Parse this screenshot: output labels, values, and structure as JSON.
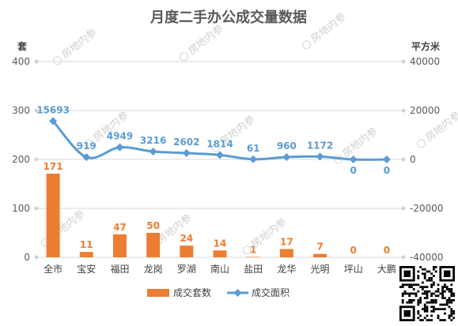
{
  "chart_data": {
    "type": "bar+line",
    "title": "月度二手办公成交量数据",
    "categories": [
      "全市",
      "宝安",
      "福田",
      "龙岗",
      "罗湖",
      "南山",
      "盐田",
      "龙华",
      "光明",
      "坪山",
      "大鹏"
    ],
    "series": [
      {
        "name": "成交套数",
        "type": "bar",
        "axis": "left",
        "color": "#ed7d31",
        "values": [
          171,
          11,
          47,
          50,
          24,
          14,
          1,
          17,
          7,
          0,
          0
        ]
      },
      {
        "name": "成交面积",
        "type": "line",
        "axis": "right",
        "color": "#5b9bd5",
        "values": [
          15693,
          919,
          4949,
          3216,
          2602,
          1814,
          61,
          960,
          1172,
          0,
          0
        ]
      }
    ],
    "y_left": {
      "label": "套",
      "min": 0,
      "max": 400,
      "ticks": [
        0,
        100,
        200,
        300,
        400
      ]
    },
    "y_right": {
      "label": "平方米",
      "min": -40000,
      "max": 40000,
      "ticks": [
        -40000,
        -20000,
        0,
        20000,
        40000
      ]
    },
    "grid": true,
    "legend_position": "bottom"
  },
  "watermark": "房地内参",
  "qr_code": "qr-code"
}
